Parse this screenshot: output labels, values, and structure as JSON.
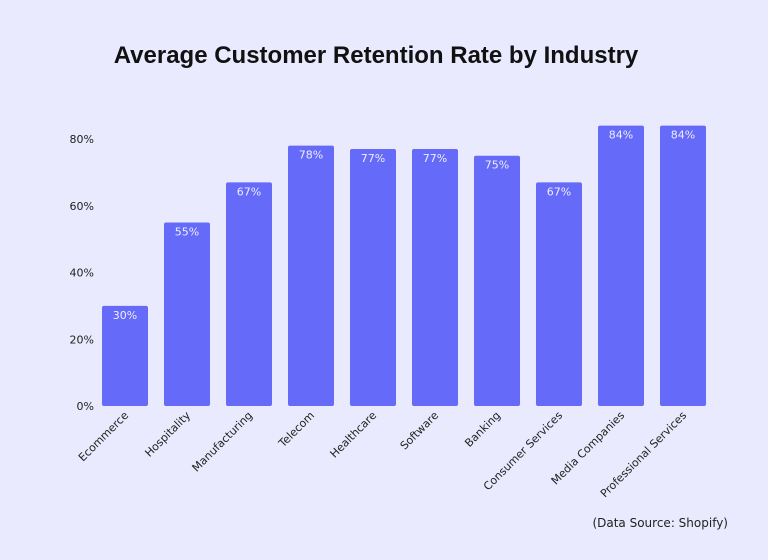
{
  "chart_data": {
    "type": "bar",
    "title": "Average Customer Retention Rate by Industry",
    "categories": [
      "Ecommerce",
      "Hospitality",
      "Manufacturing",
      "Telecom",
      "Healthcare",
      "Software",
      "Banking",
      "Consumer Services",
      "Media Companies",
      "Professional Services"
    ],
    "values": [
      30,
      55,
      67,
      78,
      77,
      77,
      75,
      67,
      84,
      84
    ],
    "data_labels": [
      "30%",
      "55%",
      "67%",
      "78%",
      "77%",
      "77%",
      "75%",
      "67%",
      "84%",
      "84%"
    ],
    "yticks": [
      "0%",
      "20%",
      "40%",
      "60%",
      "80%"
    ],
    "ytick_values": [
      0,
      20,
      40,
      60,
      80
    ],
    "ylim": [
      0,
      84
    ],
    "xlabel": "",
    "ylabel": "",
    "grid": false,
    "bar_color": "#666af8",
    "background": "#e9eafd",
    "source": "(Data Source: Shopify)"
  }
}
